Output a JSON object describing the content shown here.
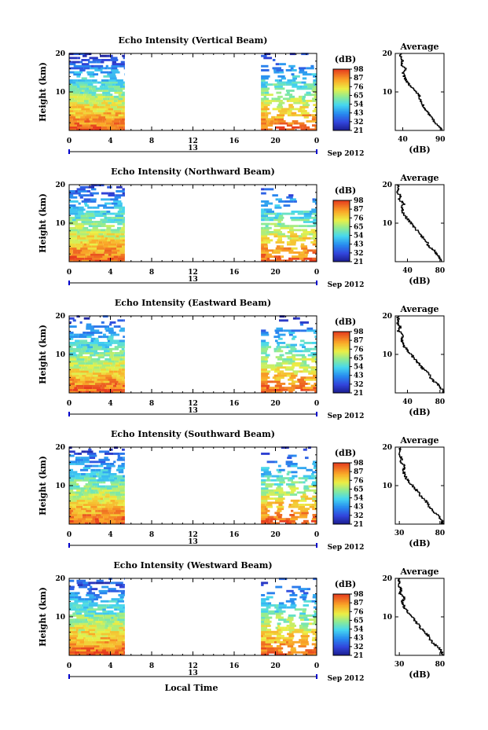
{
  "chart_data": {
    "type": "heatmap",
    "x_axis": {
      "label": "Local Time",
      "ticks": [
        "0",
        "4",
        "8",
        "12",
        "16",
        "20",
        "0"
      ],
      "xlim": [
        0,
        24
      ],
      "day_label": "13",
      "month_label": "Sep 2012"
    },
    "y_axis": {
      "label": "Height (km)",
      "ticks": [
        "10",
        "20"
      ],
      "ylim": [
        0,
        20
      ]
    },
    "colorbar": {
      "label": "(dB)",
      "ticks": [
        "21",
        "32",
        "43",
        "54",
        "65",
        "76",
        "87",
        "98"
      ],
      "range": [
        21,
        98
      ]
    },
    "data_coverage_hours": [
      [
        0,
        5.4
      ],
      [
        18.6,
        24
      ]
    ],
    "profile_title": "Average",
    "profile_xlabel": "(dB)",
    "panels": [
      {
        "title": "Echo Intensity (Vertical Beam)",
        "profile_xticks": [
          "40",
          "90"
        ],
        "profile_xlim": [
          30,
          95
        ],
        "profile": [
          [
            92,
            0
          ],
          [
            88,
            1
          ],
          [
            82,
            2
          ],
          [
            80,
            3
          ],
          [
            76,
            4
          ],
          [
            72,
            5
          ],
          [
            68,
            6
          ],
          [
            66,
            7
          ],
          [
            63,
            8
          ],
          [
            62,
            9
          ],
          [
            58,
            10
          ],
          [
            52,
            11
          ],
          [
            48,
            12
          ],
          [
            44,
            13
          ],
          [
            42,
            14
          ],
          [
            40,
            15
          ],
          [
            44,
            16
          ],
          [
            38,
            17
          ],
          [
            40,
            18
          ],
          [
            37,
            19
          ],
          [
            38,
            20
          ]
        ]
      },
      {
        "title": "Echo Intensity (Northward Beam)",
        "profile_xticks": [
          "40",
          "80"
        ],
        "profile_xlim": [
          25,
          85
        ],
        "profile": [
          [
            82,
            0
          ],
          [
            80,
            1
          ],
          [
            76,
            2
          ],
          [
            72,
            3
          ],
          [
            66,
            4
          ],
          [
            64,
            5
          ],
          [
            60,
            6
          ],
          [
            55,
            7
          ],
          [
            52,
            8
          ],
          [
            48,
            9
          ],
          [
            44,
            10
          ],
          [
            40,
            11
          ],
          [
            36,
            12
          ],
          [
            34,
            13
          ],
          [
            33,
            14
          ],
          [
            36,
            15
          ],
          [
            30,
            16
          ],
          [
            31,
            17
          ],
          [
            28,
            18
          ],
          [
            29,
            19
          ],
          [
            28,
            20
          ]
        ]
      },
      {
        "title": "Echo Intensity (Eastward Beam)",
        "profile_xticks": [
          "40",
          "80"
        ],
        "profile_xlim": [
          25,
          85
        ],
        "profile": [
          [
            84,
            0
          ],
          [
            82,
            1
          ],
          [
            78,
            2
          ],
          [
            72,
            3
          ],
          [
            68,
            4
          ],
          [
            66,
            5
          ],
          [
            60,
            6
          ],
          [
            56,
            7
          ],
          [
            52,
            8
          ],
          [
            48,
            9
          ],
          [
            44,
            10
          ],
          [
            40,
            11
          ],
          [
            36,
            12
          ],
          [
            34,
            13
          ],
          [
            32,
            14
          ],
          [
            35,
            15
          ],
          [
            29,
            16
          ],
          [
            31,
            17
          ],
          [
            28,
            18
          ],
          [
            29,
            19
          ],
          [
            28,
            20
          ]
        ]
      },
      {
        "title": "Echo Intensity (Southward Beam)",
        "profile_xticks": [
          "30",
          "80"
        ],
        "profile_xlim": [
          25,
          85
        ],
        "profile": [
          [
            83,
            0
          ],
          [
            82,
            1
          ],
          [
            78,
            2
          ],
          [
            73,
            3
          ],
          [
            68,
            4
          ],
          [
            66,
            5
          ],
          [
            62,
            6
          ],
          [
            57,
            7
          ],
          [
            54,
            8
          ],
          [
            50,
            9
          ],
          [
            46,
            10
          ],
          [
            42,
            11
          ],
          [
            38,
            12
          ],
          [
            36,
            13
          ],
          [
            35,
            14
          ],
          [
            37,
            15
          ],
          [
            32,
            16
          ],
          [
            33,
            17
          ],
          [
            30,
            18
          ],
          [
            31,
            19
          ],
          [
            30,
            20
          ]
        ]
      },
      {
        "title": "Echo Intensity (Westward Beam)",
        "profile_xticks": [
          "30",
          "80"
        ],
        "profile_xlim": [
          25,
          85
        ],
        "profile": [
          [
            83,
            0
          ],
          [
            82,
            1
          ],
          [
            78,
            2
          ],
          [
            72,
            3
          ],
          [
            68,
            4
          ],
          [
            66,
            5
          ],
          [
            61,
            6
          ],
          [
            56,
            7
          ],
          [
            53,
            8
          ],
          [
            49,
            9
          ],
          [
            45,
            10
          ],
          [
            41,
            11
          ],
          [
            37,
            12
          ],
          [
            35,
            13
          ],
          [
            34,
            14
          ],
          [
            37,
            15
          ],
          [
            31,
            16
          ],
          [
            32,
            17
          ],
          [
            29,
            18
          ],
          [
            30,
            19
          ],
          [
            29,
            20
          ]
        ]
      }
    ]
  }
}
